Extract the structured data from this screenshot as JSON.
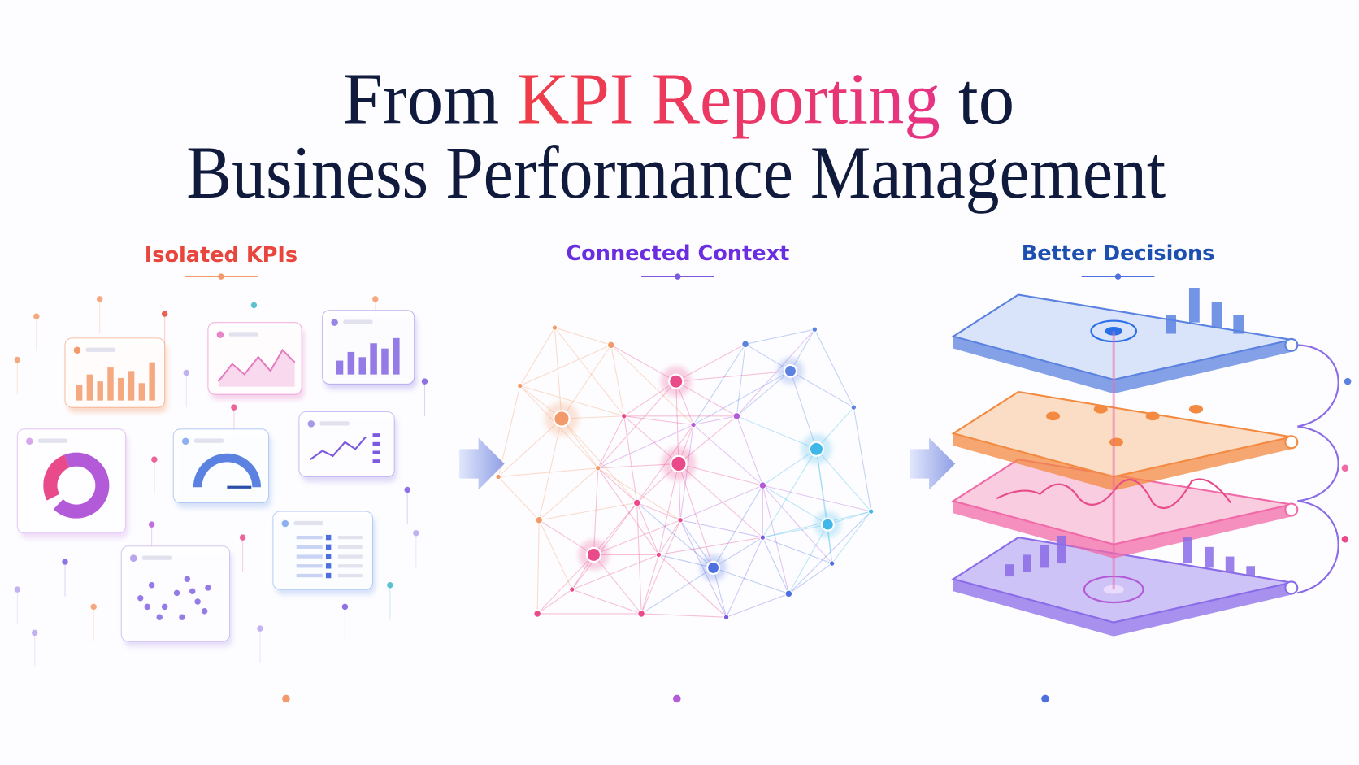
{
  "header": {
    "title_start": "From",
    "title_highlight": "KPI Reporting",
    "title_end": "to",
    "title_line2": "Business Performance Management"
  },
  "stages": [
    {
      "label": "Isolated KPIs"
    },
    {
      "label": "Connected Context"
    },
    {
      "label": "Better Decisions"
    }
  ]
}
